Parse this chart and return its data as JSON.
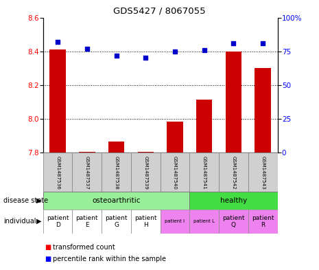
{
  "title": "GDS5427 / 8067055",
  "samples": [
    "GSM1487536",
    "GSM1487537",
    "GSM1487538",
    "GSM1487539",
    "GSM1487540",
    "GSM1487541",
    "GSM1487542",
    "GSM1487543"
  ],
  "red_values": [
    8.41,
    7.805,
    7.865,
    7.805,
    7.985,
    8.115,
    8.4,
    8.3
  ],
  "blue_values": [
    82,
    77,
    72,
    70,
    75,
    76,
    81,
    81
  ],
  "ymin": 7.8,
  "ymax": 8.6,
  "y2min": 0,
  "y2max": 100,
  "yticks": [
    7.8,
    8.0,
    8.2,
    8.4,
    8.6
  ],
  "y2ticks": [
    0,
    25,
    50,
    75,
    100
  ],
  "disease_state_colors": {
    "osteoarthritic": "#99EE99",
    "healthy": "#44DD44"
  },
  "individual_labels_large": [
    "patient\nD",
    "patient\nE",
    "patient\nG",
    "patient\nH",
    "patient\nQ",
    "patient\nR"
  ],
  "individual_labels_small": [
    "patient I",
    "patient L"
  ],
  "individual_colors": [
    "#ffffff",
    "#ffffff",
    "#ffffff",
    "#ffffff",
    "#EE82EE",
    "#EE82EE",
    "#EE82EE",
    "#EE82EE"
  ],
  "bar_color": "#CC0000",
  "dot_color": "#0000CC",
  "background_color": "#ffffff",
  "gsm_bg_color": "#D0D0D0"
}
